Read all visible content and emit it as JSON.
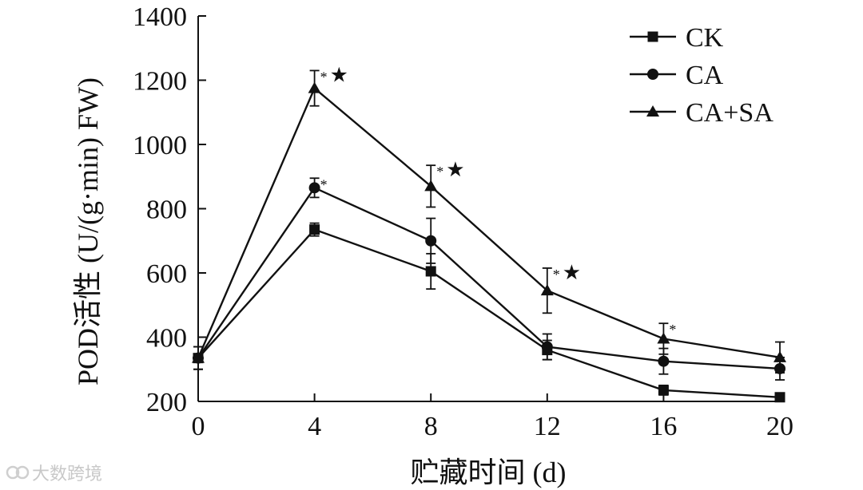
{
  "chart_data": {
    "type": "line",
    "xlabel": "贮藏时间 (d)",
    "ylabel": "POD活性 (U/(g·min) FW)",
    "x": [
      0,
      4,
      8,
      12,
      16,
      20
    ],
    "xticks": [
      "0",
      "4",
      "8",
      "12",
      "16",
      "20"
    ],
    "yticks": [
      "200",
      "400",
      "600",
      "800",
      "1000",
      "1200",
      "1400"
    ],
    "xlim": [
      0,
      20
    ],
    "ylim": [
      200,
      1400
    ],
    "grid": false,
    "legend_position": "top-right",
    "series": [
      {
        "name": "CK",
        "marker": "square",
        "values": [
          335,
          735,
          605,
          360,
          235,
          213
        ],
        "errors": [
          35,
          20,
          55,
          30,
          15,
          10
        ]
      },
      {
        "name": "CA",
        "marker": "circle",
        "values": [
          335,
          865,
          700,
          370,
          325,
          302
        ],
        "errors": [
          35,
          30,
          70,
          40,
          40,
          35
        ]
      },
      {
        "name": "CA+SA",
        "marker": "triangle",
        "values": [
          335,
          1175,
          870,
          545,
          395,
          337
        ],
        "errors": [
          35,
          55,
          65,
          70,
          48,
          48
        ]
      }
    ],
    "annotations": [
      {
        "x": 4,
        "near": "CA",
        "text": "*"
      },
      {
        "x": 4,
        "near": "CA+SA",
        "text": "*★"
      },
      {
        "x": 8,
        "near": "CA+SA",
        "text": "*★"
      },
      {
        "x": 12,
        "near": "CA+SA",
        "text": "*★"
      },
      {
        "x": 16,
        "near": "CA+SA",
        "text": "*"
      }
    ]
  },
  "watermark": "大数跨境"
}
